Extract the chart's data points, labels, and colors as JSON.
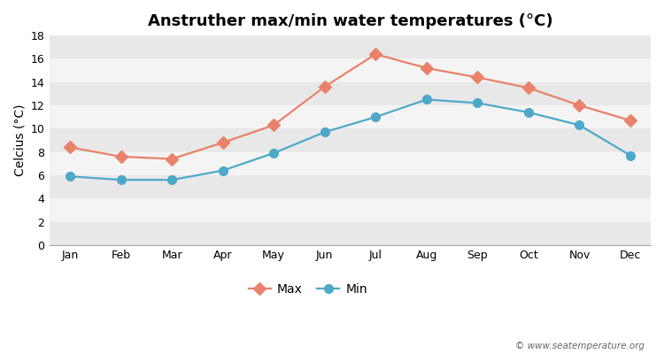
{
  "title": "Anstruther max/min water temperatures (°C)",
  "ylabel": "Celcius (°C)",
  "months": [
    "Jan",
    "Feb",
    "Mar",
    "Apr",
    "May",
    "Jun",
    "Jul",
    "Aug",
    "Sep",
    "Oct",
    "Nov",
    "Dec"
  ],
  "max_values": [
    8.4,
    7.6,
    7.4,
    8.8,
    10.3,
    13.6,
    16.4,
    15.2,
    14.4,
    13.5,
    12.0,
    10.7
  ],
  "min_values": [
    5.9,
    5.6,
    5.6,
    6.4,
    7.9,
    9.7,
    11.0,
    12.5,
    12.2,
    11.4,
    10.3,
    7.7
  ],
  "max_color": "#e8826a",
  "min_color": "#4fa8c8",
  "max_marker": "D",
  "min_marker": "o",
  "ylim": [
    0,
    18
  ],
  "yticks": [
    0,
    2,
    4,
    6,
    8,
    10,
    12,
    14,
    16,
    18
  ],
  "bg_color": "#ffffff",
  "plot_bg_color": "#ffffff",
  "band_color_dark": "#e8e8e8",
  "band_color_light": "#f4f4f4",
  "legend_labels": [
    "Max",
    "Min"
  ],
  "watermark": "© www.seatemperature.org",
  "title_fontsize": 13,
  "axis_label_fontsize": 10,
  "tick_fontsize": 9,
  "legend_fontsize": 10,
  "marker_size": 7,
  "line_width": 1.6
}
